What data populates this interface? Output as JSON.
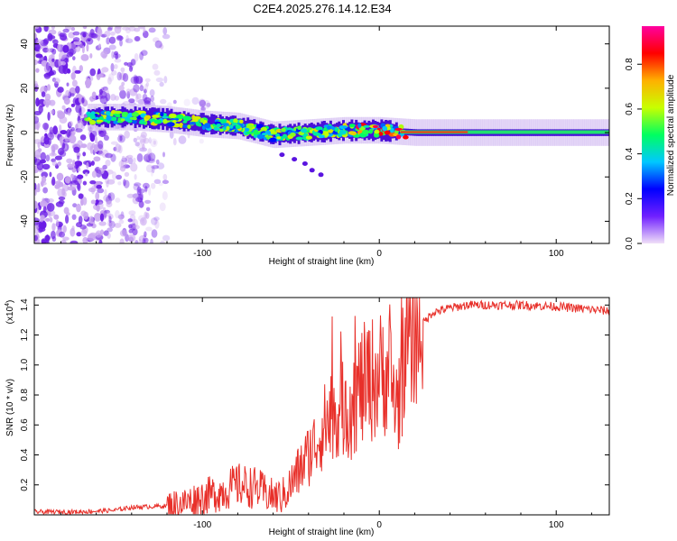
{
  "title": "C2E4.2025.276.14.12.E34",
  "chart_data": [
    {
      "type": "heatmap",
      "xlabel": "Height of straight line (km)",
      "ylabel": "Frequency (Hz)",
      "xlim": [
        -195,
        130
      ],
      "ylim": [
        -50,
        48
      ],
      "xticks": [
        -100,
        0,
        100
      ],
      "xtick_labels": [
        "-100",
        "0",
        "100"
      ],
      "yticks": [
        -40,
        -20,
        0,
        20,
        40
      ],
      "ytick_labels": [
        "-40",
        "-20",
        "0",
        "20",
        "40"
      ],
      "colorbar": {
        "label": "Normalized spectral amplitude",
        "range": [
          0.0,
          0.97
        ],
        "ticks": [
          0.0,
          0.2,
          0.4,
          0.6,
          0.8
        ],
        "tick_labels": [
          "0.0",
          "0.2",
          "0.4",
          "0.6",
          "0.8"
        ],
        "colormap": [
          "#f0e0f8",
          "#7020ff",
          "#0000ff",
          "#00c8ff",
          "#00ff60",
          "#c8ff00",
          "#ffb000",
          "#ff0000",
          "#ff00a0"
        ]
      },
      "ridge": {
        "height_km": [
          -160,
          -140,
          -120,
          -100,
          -80,
          -60,
          -40,
          -20,
          0,
          20,
          50,
          100,
          130
        ],
        "frequency_hz": [
          7,
          7,
          6,
          4,
          3,
          -1,
          0,
          1,
          1,
          0,
          0,
          0,
          0
        ]
      }
    },
    {
      "type": "line",
      "xlabel": "Height of straight line (km)",
      "ylabel": "SNR (10 * v/v)",
      "scale_label": "(x10",
      "scale_exponent": "4",
      "xlim": [
        -195,
        130
      ],
      "ylim": [
        0,
        1.45
      ],
      "xticks": [
        -100,
        0,
        100
      ],
      "xtick_labels": [
        "-100",
        "0",
        "100"
      ],
      "yticks": [
        0.2,
        0.4,
        0.6,
        0.8,
        1.0,
        1.2,
        1.4
      ],
      "ytick_labels": [
        "0.2",
        "0.4",
        "0.6",
        "0.8",
        "1.0",
        "1.2",
        "1.4"
      ],
      "series": [
        {
          "name": "SNR",
          "color": "#e8302a",
          "x": [
            -195,
            -170,
            -150,
            -140,
            -120,
            -110,
            -100,
            -90,
            -80,
            -70,
            -60,
            -55,
            -50,
            -45,
            -40,
            -35,
            -30,
            -25,
            -20,
            -15,
            -10,
            -5,
            0,
            5,
            10,
            15,
            20,
            25,
            30,
            40,
            50,
            60,
            80,
            100,
            120,
            130
          ],
          "y": [
            0.02,
            0.02,
            0.03,
            0.05,
            0.06,
            0.08,
            0.12,
            0.15,
            0.2,
            0.18,
            0.12,
            0.12,
            0.2,
            0.3,
            0.4,
            0.5,
            0.62,
            0.7,
            0.7,
            0.78,
            0.85,
            0.9,
            0.93,
            0.97,
            0.72,
            1.12,
            1.2,
            1.28,
            1.35,
            1.38,
            1.4,
            1.4,
            1.4,
            1.39,
            1.37,
            1.36
          ]
        }
      ]
    }
  ]
}
